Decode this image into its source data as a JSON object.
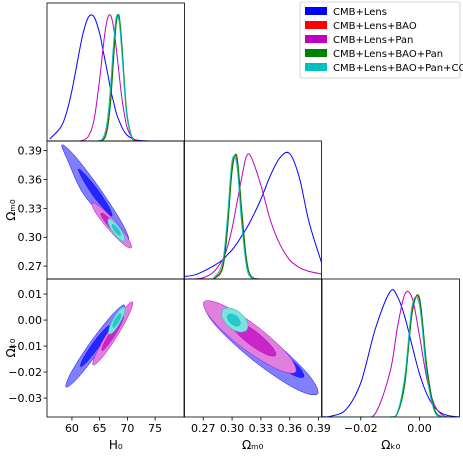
{
  "chart_data": [
    {
      "type": "line",
      "legend": "upper right",
      "xlim": [
        55.5,
        80.3
      ],
      "ylim": [
        0,
        1.09
      ],
      "x": [
        56,
        58,
        59,
        60,
        61,
        62,
        63,
        64,
        65,
        65.5,
        66,
        66.5,
        67,
        67.5,
        68,
        68.5,
        69,
        69.5,
        70,
        71,
        72,
        74,
        78
      ],
      "series": [
        {
          "name": "CMB+Lens",
          "color": "#0000ff",
          "values": [
            0.016,
            0.11,
            0.22,
            0.4,
            0.63,
            0.85,
            0.98,
            0.98,
            0.85,
            0.74,
            0.63,
            0.52,
            0.4,
            0.31,
            0.22,
            0.16,
            0.11,
            0.07,
            0.044,
            0.016,
            0.005,
            0,
            0
          ]
        },
        {
          "name": "CMB+Lens+BAO",
          "color": "#ff0000",
          "values": [
            0,
            0,
            0,
            0,
            0,
            0,
            0,
            0,
            0.001,
            0.008,
            0.04,
            0.14,
            0.35,
            0.67,
            0.95,
            0.98,
            0.74,
            0.41,
            0.17,
            0.01,
            0,
            0,
            0
          ]
        },
        {
          "name": "CMB+Lens+Pan",
          "color": "#bf00bf",
          "values": [
            0,
            0,
            0,
            0,
            0,
            0.006,
            0.04,
            0.17,
            0.49,
            0.69,
            0.87,
            0.98,
            0.99,
            0.9,
            0.73,
            0.53,
            0.34,
            0.2,
            0.1,
            0.02,
            0.002,
            0,
            0
          ]
        },
        {
          "name": "CMB+Lens+BAO+Pan",
          "color": "#008000",
          "values": [
            0,
            0,
            0,
            0,
            0,
            0,
            0,
            0,
            0.001,
            0.006,
            0.03,
            0.12,
            0.32,
            0.64,
            0.93,
            0.99,
            0.77,
            0.44,
            0.19,
            0.01,
            0,
            0,
            0
          ]
        },
        {
          "name": "CMB+Lens+BAO+Pan+CC",
          "color": "#00bfbf",
          "values": [
            0,
            0,
            0,
            0,
            0,
            0,
            0,
            0,
            0.003,
            0.017,
            0.07,
            0.2,
            0.45,
            0.76,
            0.98,
            0.95,
            0.7,
            0.39,
            0.17,
            0.013,
            0,
            0,
            0
          ]
        }
      ]
    },
    {
      "type": "contour",
      "xlim": [
        55.5,
        80.3
      ],
      "ylim": [
        0.2566,
        0.4
      ],
      "ylabel": "Ωₘ₀",
      "yticks": [
        0.27,
        {
          "value": 0.3,
          "label": "0.30"
        },
        0.33,
        0.36,
        0.39
      ],
      "series": [
        {
          "color": "#0000ff",
          "contours": [
            {
              "x": [
                70.2,
                69.1,
                65.1,
                60.6,
                58.2,
                59.3,
                62.3,
                67.8
              ],
              "y": [
                0.297,
                0.314,
                0.35,
                0.384,
                0.396,
                0.379,
                0.343,
                0.309
              ]
            },
            {
              "x": [
                67.2,
                66.7,
                64.7,
                62.4,
                61.2,
                61.7,
                63.7,
                66.0
              ],
              "y": [
                0.322,
                0.331,
                0.349,
                0.365,
                0.371,
                0.363,
                0.344,
                0.328
              ]
            }
          ]
        },
        {
          "color": "#bf00bf",
          "contours": [
            {
              "x": [
                70.7,
                70.2,
                67.9,
                65.2,
                63.65,
                64.2,
                66.5,
                69.2
              ],
              "y": [
                0.289,
                0.298,
                0.316,
                0.331,
                0.336,
                0.326,
                0.309,
                0.293
              ]
            },
            {
              "x": [
                69.1,
                68.8,
                67.6,
                66.1,
                65.25,
                65.5,
                66.8,
                68.3
              ],
              "y": [
                0.299,
                0.304,
                0.314,
                0.323,
                0.325,
                0.32,
                0.31,
                0.302
              ]
            }
          ]
        },
        {
          "color": "#00bfbf",
          "contours": [
            {
              "x": [
                69.45,
                69.45,
                68.58,
                67.38,
                66.55,
                66.55,
                67.42,
                68.62
              ],
              "y": [
                0.2961,
                0.3012,
                0.31,
                0.3174,
                0.319,
                0.3139,
                0.305,
                0.2977
              ]
            },
            {
              "x": [
                68.72,
                68.7,
                68.29,
                67.69,
                67.28,
                67.29,
                67.71,
                68.31
              ],
              "y": [
                0.3018,
                0.3043,
                0.3088,
                0.3124,
                0.3133,
                0.3108,
                0.3063,
                0.3027
              ]
            }
          ]
        }
      ]
    },
    {
      "type": "line",
      "xlim": [
        0.25,
        0.393
      ],
      "ylim": [
        0,
        1.09
      ],
      "x": [
        0.25,
        0.26,
        0.27,
        0.28,
        0.29,
        0.295,
        0.3,
        0.305,
        0.31,
        0.315,
        0.32,
        0.33,
        0.34,
        0.35,
        0.36,
        0.37,
        0.38,
        0.393
      ],
      "series": [
        {
          "color": "#0000ff",
          "values": [
            0.02,
            0.03,
            0.06,
            0.1,
            0.15,
            0.19,
            0.23,
            0.28,
            0.34,
            0.4,
            0.47,
            0.63,
            0.82,
            0.96,
            0.99,
            0.8,
            0.45,
            0.13
          ]
        },
        {
          "color": "#ff0000",
          "values": [
            0,
            0,
            0,
            0.001,
            0.095,
            0.41,
            0.88,
            0.95,
            0.51,
            0.14,
            0.02,
            0,
            0,
            0,
            0,
            0,
            0,
            0
          ]
        },
        {
          "color": "#bf00bf",
          "values": [
            0,
            0,
            0.01,
            0.05,
            0.15,
            0.25,
            0.4,
            0.6,
            0.8,
            0.97,
            0.96,
            0.74,
            0.46,
            0.27,
            0.15,
            0.09,
            0.06,
            0.04
          ]
        },
        {
          "color": "#008000",
          "values": [
            0,
            0,
            0,
            0.001,
            0.08,
            0.37,
            0.85,
            0.97,
            0.55,
            0.16,
            0.02,
            0,
            0,
            0,
            0,
            0,
            0,
            0
          ]
        },
        {
          "color": "#00bfbf",
          "values": [
            0,
            0,
            0,
            0.002,
            0.13,
            0.47,
            0.93,
            0.9,
            0.44,
            0.1,
            0.01,
            0,
            0,
            0,
            0,
            0,
            0,
            0
          ]
        }
      ]
    },
    {
      "type": "contour",
      "xlim": [
        55.5,
        80.3
      ],
      "ylim": [
        -0.0373,
        0.0158
      ],
      "xlabel": "H₀",
      "ylabel": "Ωₖ₀",
      "xticks": [
        60,
        65,
        70,
        75
      ],
      "yticks": [
        0.01,
        {
          "value": 0,
          "label": "0.00"
        },
        {
          "value": -0.01,
          "label": "−0.01"
        },
        {
          "value": -0.02,
          "label": "−0.02"
        },
        {
          "value": -0.03,
          "label": "−0.03"
        }
      ],
      "series": [
        {
          "color": "#0000ff",
          "contours": [
            {
              "x": [
                69.45,
                68.54,
                65.08,
                61.12,
                58.94,
                59.85,
                63.31,
                67.28
              ],
              "y": [
                0.0058,
                0.0002,
                -0.0113,
                -0.0221,
                -0.0258,
                -0.0202,
                -0.0086,
                0.0021
              ]
            },
            {
              "x": [
                66.82,
                66.42,
                64.72,
                62.69,
                61.57,
                61.97,
                63.67,
                65.7
              ],
              "y": [
                -0.0021,
                -0.0049,
                -0.0107,
                -0.0161,
                -0.0179,
                -0.015,
                -0.0092,
                -0.0039
              ]
            }
          ]
        },
        {
          "color": "#bf00bf",
          "contours": [
            {
              "x": [
                70.9,
                70.41,
                68.15,
                65.41,
                63.83,
                64.32,
                66.59,
                69.32
              ],
              "y": [
                0.007,
                0.0027,
                -0.0062,
                -0.0145,
                -0.0173,
                -0.013,
                -0.0042,
                0.0041
              ]
            },
            {
              "x": [
                69.3,
                69.05,
                67.8,
                66.3,
                65.43,
                65.68,
                66.93,
                68.43
              ],
              "y": [
                0.0015,
                -0.0008,
                -0.0057,
                -0.0102,
                -0.0118,
                -0.0094,
                -0.0046,
                -0.0001
              ]
            }
          ]
        },
        {
          "color": "#00bfbf",
          "contours": [
            {
              "x": [
                69.45,
                69.5,
                68.72,
                67.58,
                66.73,
                66.68,
                67.46,
                68.6
              ],
              "y": [
                0.005,
                0.0029,
                -0.0009,
                -0.0044,
                -0.0054,
                -0.0033,
                0.0005,
                0.004
              ]
            },
            {
              "x": [
                68.78,
                68.8,
                68.42,
                67.84,
                67.42,
                67.4,
                67.78,
                68.34
              ],
              "y": [
                0.0024,
                0.0014,
                -0.0006,
                -0.0023,
                -0.0028,
                -0.0018,
                0.0002,
                0.0019
              ]
            }
          ]
        }
      ]
    },
    {
      "type": "contour",
      "xlim": [
        0.25,
        0.393
      ],
      "ylim": [
        -0.0373,
        0.0158
      ],
      "xlabel": "Ωₘ₀",
      "xticks": [
        0.27,
        {
          "value": 0.3,
          "label": "0.30"
        },
        0.33,
        0.36,
        0.39
      ],
      "series": [
        {
          "color": "#0000ff",
          "contours": [
            {
              "x": [
                0.3889,
                0.3781,
                0.3393,
                0.2954,
                0.2718,
                0.2825,
                0.3213,
                0.3652
              ],
              "y": [
                -0.0284,
                -0.0204,
                -0.0069,
                0.0041,
                0.0062,
                -0.0019,
                -0.0153,
                -0.0263
              ]
            },
            {
              "x": [
                0.3744,
                0.3697,
                0.352,
                0.3316,
                0.3205,
                0.3251,
                0.3429,
                0.3633
              ],
              "y": [
                -0.0219,
                -0.0181,
                -0.0121,
                -0.0073,
                -0.0065,
                -0.0103,
                -0.0163,
                -0.0211
              ]
            }
          ]
        },
        {
          "color": "#bf00bf",
          "contours": [
            {
              "x": [
                0.3661,
                0.3579,
                0.3266,
                0.2905,
                0.2707,
                0.2789,
                0.3102,
                0.3463
              ],
              "y": [
                -0.02,
                -0.0132,
                -0.0026,
                0.0058,
                0.007,
                0.0002,
                -0.0105,
                -0.0188
              ]
            },
            {
              "x": [
                0.3453,
                0.3415,
                0.3259,
                0.3077,
                0.2977,
                0.3015,
                0.3172,
                0.3353
              ],
              "y": [
                -0.0136,
                -0.0102,
                -0.0047,
                -0.0006,
                -0.0002,
                -0.0036,
                -0.0091,
                -0.0132
              ]
            }
          ]
        },
        {
          "color": "#00bfbf",
          "contours": [
            {
              "x": [
                0.3153,
                0.3159,
                0.3089,
                0.2983,
                0.2904,
                0.2898,
                0.2968,
                0.3074
              ],
              "y": [
                -0.0038,
                -0.0008,
                0.0027,
                0.0046,
                0.0039,
                0.0009,
                -0.0026,
                -0.0046
              ]
            },
            {
              "x": [
                0.308,
                0.3082,
                0.3048,
                0.2995,
                0.2956,
                0.2954,
                0.2988,
                0.3041
              ],
              "y": [
                -0.0019,
                -0.0004,
                0.0014,
                0.0023,
                0.0019,
                0.0005,
                -0.0013,
                -0.0023
              ]
            }
          ]
        }
      ]
    },
    {
      "type": "line",
      "xlim": [
        -0.0332,
        0.0136
      ],
      "ylim": [
        0,
        1.09
      ],
      "xlabel": "Ωₖ₀",
      "xticks": [
        {
          "value": -0.02,
          "label": "−0.02"
        },
        {
          "value": 0,
          "label": "0.00"
        }
      ],
      "x": [
        -0.033,
        -0.03,
        -0.025,
        -0.02,
        -0.015,
        -0.01,
        -0.0075,
        -0.005,
        -0.0025,
        0,
        0.0025,
        0.005,
        0.0075,
        0.01,
        0.0136
      ],
      "series": [
        {
          "color": "#0000ff",
          "values": [
            0.002,
            0.007,
            0.06,
            0.27,
            0.7,
            0.99,
            0.95,
            0.79,
            0.56,
            0.34,
            0.18,
            0.08,
            0.03,
            0.01,
            0
          ]
        },
        {
          "color": "#ff0000",
          "values": [
            0,
            0,
            0,
            0,
            0,
            0,
            0.03,
            0.28,
            0.84,
            0.92,
            0.38,
            0.06,
            0.003,
            0,
            0
          ]
        },
        {
          "color": "#bf00bf",
          "values": [
            0,
            0,
            0,
            0.001,
            0.03,
            0.36,
            0.71,
            0.97,
            0.94,
            0.64,
            0.3,
            0.1,
            0.02,
            0,
            0
          ]
        },
        {
          "color": "#008000",
          "values": [
            0,
            0,
            0,
            0,
            0,
            0,
            0.03,
            0.26,
            0.82,
            0.94,
            0.4,
            0.07,
            0.004,
            0,
            0
          ]
        },
        {
          "color": "#00bfbf",
          "values": [
            0,
            0,
            0,
            0,
            0,
            0,
            0.04,
            0.32,
            0.88,
            0.88,
            0.33,
            0.05,
            0.002,
            0,
            0
          ]
        }
      ]
    }
  ]
}
